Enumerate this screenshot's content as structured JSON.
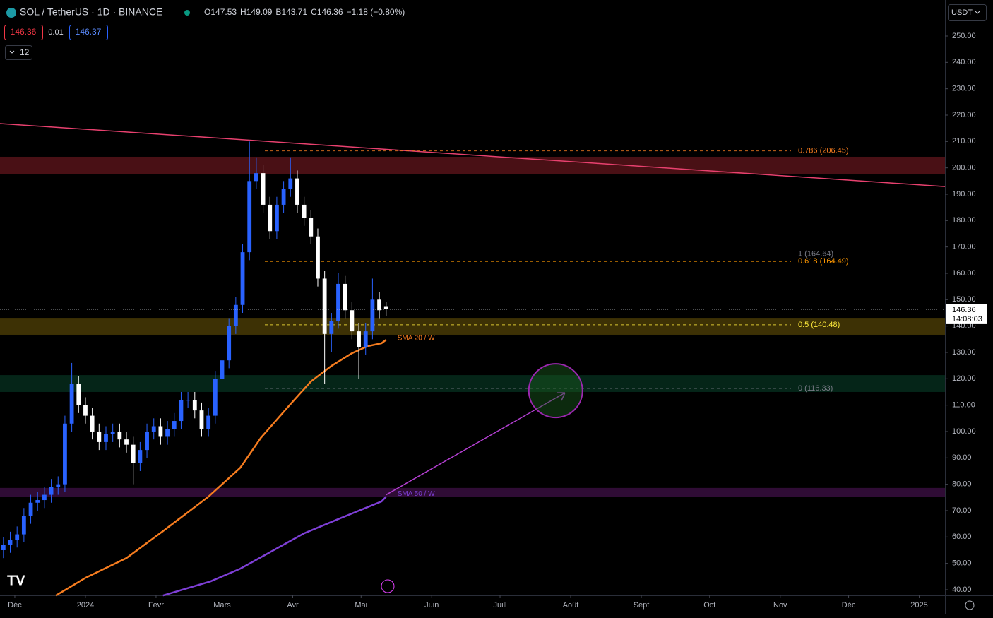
{
  "header": {
    "symbol": "SOL / TetherUS · 1D · BINANCE",
    "ohlc": [
      {
        "key": "O",
        "value": "147.53"
      },
      {
        "key": "H",
        "value": "149.09"
      },
      {
        "key": "B",
        "value": "143.71"
      },
      {
        "key": "C",
        "value": "146.36"
      }
    ],
    "change": "−1.18 (−0.80%)",
    "bid": "146.36",
    "spread": "0.01",
    "ask": "146.37",
    "indicators_count": "12",
    "currency": "USDT"
  },
  "chart_data": {
    "type": "candlestick",
    "x": [
      -5,
      -2,
      1,
      4,
      7,
      10,
      13,
      16,
      19,
      22,
      25,
      28,
      31,
      34,
      37,
      40,
      43,
      46,
      49,
      52,
      55,
      58,
      61,
      64,
      67,
      70,
      73,
      76,
      79,
      82,
      85,
      88,
      91,
      94,
      97,
      100,
      103,
      106,
      109,
      112,
      115,
      118,
      121,
      124,
      127,
      130,
      133,
      136,
      139,
      142,
      145,
      148,
      151,
      154,
      157,
      160,
      163
    ],
    "open": [
      55,
      57,
      59,
      61,
      68,
      73,
      74,
      76,
      79,
      80,
      103,
      118,
      110,
      106,
      100,
      96,
      99,
      100,
      97,
      95,
      88,
      93,
      100,
      102,
      98,
      101,
      104,
      112,
      112,
      108,
      101,
      106,
      120,
      127,
      140,
      148,
      168,
      195,
      198,
      186,
      176,
      186,
      192,
      196,
      186,
      181,
      174,
      158,
      137,
      142,
      156,
      146,
      138,
      132,
      138,
      150,
      147.53
    ],
    "high": [
      60,
      62,
      64,
      71,
      76,
      77,
      79,
      82,
      83,
      106,
      126,
      121,
      113,
      109,
      103,
      102,
      103,
      103,
      100,
      98,
      96,
      103,
      105,
      105,
      104,
      107,
      115,
      115,
      115,
      111,
      109,
      123,
      130,
      143,
      151,
      171,
      210,
      204,
      201,
      189,
      189,
      195,
      204,
      199,
      189,
      184,
      177,
      161,
      145,
      160,
      159,
      149,
      141,
      141,
      158,
      153,
      149.09
    ],
    "low": [
      52,
      54,
      56,
      58,
      65,
      70,
      71,
      73,
      76,
      77,
      100,
      107,
      103,
      97,
      93,
      93,
      96,
      94,
      92,
      80,
      85,
      90,
      97,
      95,
      95,
      98,
      101,
      109,
      105,
      98,
      98,
      103,
      117,
      124,
      137,
      145,
      165,
      192,
      183,
      173,
      173,
      183,
      189,
      183,
      178,
      171,
      155,
      118,
      130,
      139,
      143,
      135,
      120,
      129,
      135,
      143,
      143.71
    ],
    "close": [
      57,
      59,
      61,
      68,
      73,
      74,
      76,
      79,
      80,
      103,
      118,
      110,
      106,
      100,
      96,
      99,
      100,
      97,
      95,
      88,
      93,
      100,
      102,
      98,
      101,
      104,
      112,
      112,
      108,
      101,
      106,
      120,
      127,
      140,
      148,
      168,
      195,
      198,
      186,
      176,
      186,
      192,
      196,
      186,
      181,
      174,
      158,
      137,
      142,
      156,
      146,
      138,
      132,
      138,
      150,
      146,
      146.36
    ],
    "up_color": "#2962ff",
    "down_color": "#ffffff",
    "xlim": [
      -6.5,
      408.3
    ],
    "ylim": [
      37.85,
      263.66
    ],
    "xticks": [
      {
        "value": 0,
        "label": "Déc"
      },
      {
        "value": 31,
        "label": "2024"
      },
      {
        "value": 62,
        "label": "Févr"
      },
      {
        "value": 91,
        "label": "Mars"
      },
      {
        "value": 122,
        "label": "Avr"
      },
      {
        "value": 152,
        "label": "Mai"
      },
      {
        "value": 183,
        "label": "Juin"
      },
      {
        "value": 213,
        "label": "Juill"
      },
      {
        "value": 244,
        "label": "Août"
      },
      {
        "value": 275,
        "label": "Sept"
      },
      {
        "value": 305,
        "label": "Oct"
      },
      {
        "value": 336,
        "label": "Nov"
      },
      {
        "value": 366,
        "label": "Déc"
      },
      {
        "value": 397,
        "label": "2025"
      }
    ],
    "yticks": [
      {
        "value": 40,
        "label": "40.00"
      },
      {
        "value": 50,
        "label": "50.00"
      },
      {
        "value": 60,
        "label": "60.00"
      },
      {
        "value": 70,
        "label": "70.00"
      },
      {
        "value": 80,
        "label": "80.00"
      },
      {
        "value": 90,
        "label": "90.00"
      },
      {
        "value": 100,
        "label": "100.00"
      },
      {
        "value": 110,
        "label": "110.00"
      },
      {
        "value": 120,
        "label": "120.00"
      },
      {
        "value": 130,
        "label": "130.00"
      },
      {
        "value": 140,
        "label": "140.00"
      },
      {
        "value": 150,
        "label": "150.00"
      },
      {
        "value": 160,
        "label": "160.00"
      },
      {
        "value": 170,
        "label": "170.00"
      },
      {
        "value": 180,
        "label": "180.00"
      },
      {
        "value": 190,
        "label": "190.00"
      },
      {
        "value": 200,
        "label": "200.00"
      },
      {
        "value": 210,
        "label": "210.00"
      },
      {
        "value": 220,
        "label": "220.00"
      },
      {
        "value": 230,
        "label": "230.00"
      },
      {
        "value": 240,
        "label": "240.00"
      },
      {
        "value": 250,
        "label": "250.00"
      }
    ],
    "last_price": {
      "value": 146.36,
      "label": "146.36",
      "countdown": "14:08:03"
    },
    "lines": [
      {
        "name": "SMA 20 / W",
        "color": "#f57c1f",
        "x": [
          18,
          31,
          49,
          65,
          85,
          99,
          108,
          121,
          130,
          139,
          148,
          155,
          161,
          163
        ],
        "values": [
          37.8,
          44.5,
          52,
          62.2,
          75.3,
          86.3,
          97.6,
          110.4,
          119,
          124.9,
          129.7,
          132.4,
          133.5,
          134.8
        ]
      },
      {
        "name": "SMA 50 / W",
        "color": "#7e3fd6",
        "x": [
          65,
          86,
          99,
          127,
          142,
          161,
          163
        ],
        "values": [
          37.8,
          43.2,
          48,
          61.4,
          66.8,
          73.5,
          75.3
        ]
      }
    ],
    "zones": [
      {
        "color": "#f23645",
        "range": [
          197.5,
          204.2
        ]
      },
      {
        "color": "#c9a20f",
        "range": [
          136.7,
          143.1
        ]
      },
      {
        "color": "#0f7a4e",
        "range": [
          115,
          121.4
        ]
      },
      {
        "color": "#9c27b0",
        "range": [
          75.3,
          78.6
        ]
      }
    ],
    "trendline": {
      "color": "#e8416f",
      "x": [
        -6.5,
        408.3
      ],
      "values": [
        216.8,
        192.9
      ]
    },
    "fib": [
      {
        "label": "0.786 (206.45)",
        "value": 206.45,
        "color": "#f57c1f"
      },
      {
        "label": "1 (164.64)",
        "value": 164.64,
        "color": "#787b86"
      },
      {
        "label": "0.618 (164.49)",
        "value": 164.49,
        "color": "#ff9800"
      },
      {
        "label": "0.5 (140.48)",
        "value": 140.48,
        "color": "#ffeb3b"
      },
      {
        "label": "0 (116.33)",
        "value": 116.33,
        "color": "#787b86"
      }
    ],
    "target": {
      "x": 237.4,
      "value": 115.5,
      "color": "#9c27b0"
    },
    "arrow": {
      "x": [
        163,
        241.5
      ],
      "values": [
        76,
        114.7
      ],
      "color": "#b33fd1"
    }
  }
}
